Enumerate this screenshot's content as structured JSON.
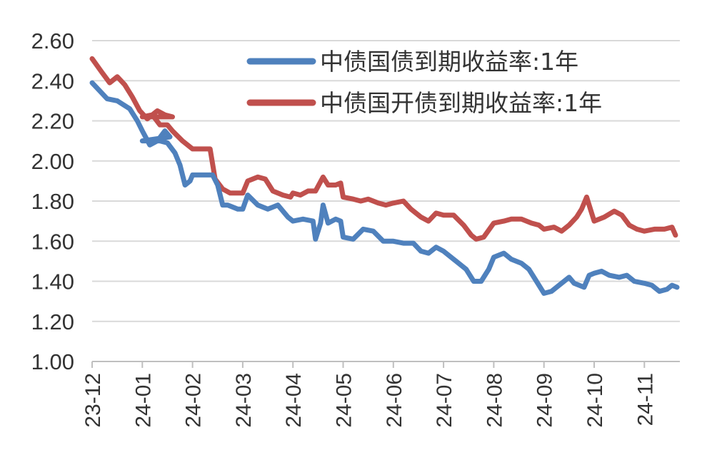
{
  "chart_data": {
    "type": "line",
    "title": "",
    "xlabel": "",
    "ylabel": "",
    "ylim": [
      1.0,
      2.6
    ],
    "y_ticks": [
      "1.00",
      "1.20",
      "1.40",
      "1.60",
      "1.80",
      "2.00",
      "2.20",
      "2.40",
      "2.60"
    ],
    "x_ticks": [
      "23-12",
      "24-01",
      "24-02",
      "24-03",
      "24-04",
      "24-05",
      "24-06",
      "24-07",
      "24-08",
      "24-09",
      "24-10",
      "24-11"
    ],
    "grid": true,
    "legend_position": "top-right",
    "series": [
      {
        "name": "中债国债到期收益率:1年",
        "color": "#4f81bd",
        "points": [
          [
            "23-12",
            2.39
          ],
          [
            0.3,
            2.31
          ],
          [
            0.5,
            2.3
          ],
          [
            0.75,
            2.26
          ],
          [
            0.9,
            2.2
          ],
          [
            1.0,
            2.15
          ],
          [
            1.15,
            2.08
          ],
          [
            1.3,
            2.1
          ],
          [
            1.45,
            2.15
          ],
          [
            1.55,
            2.12
          ],
          [
            "24-01",
            2.1
          ],
          [
            0.2,
            2.1
          ],
          [
            0.35,
            2.1
          ],
          [
            0.5,
            2.09
          ],
          [
            0.65,
            2.04
          ],
          [
            0.75,
            1.98
          ],
          [
            0.85,
            1.88
          ],
          [
            0.95,
            1.9
          ],
          [
            "24-02",
            1.93
          ],
          [
            0.2,
            1.93
          ],
          [
            0.4,
            1.93
          ],
          [
            0.5,
            1.88
          ],
          [
            0.6,
            1.78
          ],
          [
            0.7,
            1.78
          ],
          [
            0.8,
            1.77
          ],
          [
            0.9,
            1.76
          ],
          [
            "24-03",
            1.76
          ],
          [
            0.1,
            1.83
          ],
          [
            0.3,
            1.78
          ],
          [
            0.5,
            1.76
          ],
          [
            0.7,
            1.78
          ],
          [
            0.9,
            1.72
          ],
          [
            "24-04",
            1.7
          ],
          [
            0.2,
            1.71
          ],
          [
            0.4,
            1.7
          ],
          [
            0.45,
            1.61
          ],
          [
            0.55,
            1.69
          ],
          [
            0.6,
            1.78
          ],
          [
            0.7,
            1.69
          ],
          [
            0.85,
            1.71
          ],
          [
            0.95,
            1.7
          ],
          [
            "24-05",
            1.62
          ],
          [
            0.2,
            1.61
          ],
          [
            0.4,
            1.66
          ],
          [
            0.6,
            1.65
          ],
          [
            0.8,
            1.6
          ],
          [
            "24-06",
            1.6
          ],
          [
            0.2,
            1.59
          ],
          [
            0.4,
            1.59
          ],
          [
            0.55,
            1.55
          ],
          [
            0.7,
            1.54
          ],
          [
            0.85,
            1.57
          ],
          [
            "24-07",
            1.55
          ],
          [
            0.25,
            1.5
          ],
          [
            0.45,
            1.46
          ],
          [
            0.6,
            1.4
          ],
          [
            0.75,
            1.4
          ],
          [
            0.9,
            1.46
          ],
          [
            "24-08",
            1.52
          ],
          [
            0.2,
            1.54
          ],
          [
            0.35,
            1.51
          ],
          [
            0.55,
            1.49
          ],
          [
            0.7,
            1.46
          ],
          [
            0.85,
            1.4
          ],
          [
            "24-09",
            1.34
          ],
          [
            0.15,
            1.35
          ],
          [
            0.3,
            1.38
          ],
          [
            0.5,
            1.42
          ],
          [
            0.6,
            1.39
          ],
          [
            0.8,
            1.37
          ],
          [
            0.9,
            1.43
          ],
          [
            "24-10",
            1.44
          ],
          [
            0.15,
            1.45
          ],
          [
            0.3,
            1.43
          ],
          [
            0.5,
            1.42
          ],
          [
            0.65,
            1.43
          ],
          [
            0.8,
            1.4
          ],
          [
            "24-11",
            1.39
          ],
          [
            0.15,
            1.38
          ],
          [
            0.3,
            1.35
          ],
          [
            0.45,
            1.36
          ],
          [
            0.55,
            1.38
          ],
          [
            0.65,
            1.37
          ]
        ]
      },
      {
        "name": "中债国开债到期收益率:1年",
        "color": "#c0504d",
        "points": [
          [
            "23-12",
            2.51
          ],
          [
            0.2,
            2.44
          ],
          [
            0.35,
            2.39
          ],
          [
            0.5,
            2.42
          ],
          [
            0.65,
            2.38
          ],
          [
            0.8,
            2.32
          ],
          [
            0.95,
            2.25
          ],
          [
            1.1,
            2.21
          ],
          [
            1.3,
            2.25
          ],
          [
            1.45,
            2.23
          ],
          [
            1.6,
            2.22
          ],
          [
            "24-01",
            2.22
          ],
          [
            0.2,
            2.23
          ],
          [
            0.35,
            2.18
          ],
          [
            0.5,
            2.18
          ],
          [
            0.6,
            2.15
          ],
          [
            0.8,
            2.1
          ],
          [
            "24-02",
            2.06
          ],
          [
            0.2,
            2.06
          ],
          [
            0.35,
            2.06
          ],
          [
            0.45,
            1.91
          ],
          [
            0.6,
            1.86
          ],
          [
            0.75,
            1.84
          ],
          [
            0.9,
            1.84
          ],
          [
            "24-03",
            1.84
          ],
          [
            0.1,
            1.9
          ],
          [
            0.3,
            1.92
          ],
          [
            0.45,
            1.91
          ],
          [
            0.6,
            1.85
          ],
          [
            0.8,
            1.83
          ],
          [
            0.95,
            1.82
          ],
          [
            "24-04",
            1.84
          ],
          [
            0.15,
            1.83
          ],
          [
            0.3,
            1.85
          ],
          [
            0.45,
            1.85
          ],
          [
            0.6,
            1.92
          ],
          [
            0.7,
            1.88
          ],
          [
            0.85,
            1.88
          ],
          [
            0.95,
            1.89
          ],
          [
            "24-05",
            1.82
          ],
          [
            0.2,
            1.81
          ],
          [
            0.35,
            1.8
          ],
          [
            0.5,
            1.81
          ],
          [
            0.7,
            1.79
          ],
          [
            0.85,
            1.78
          ],
          [
            "24-06",
            1.79
          ],
          [
            0.2,
            1.8
          ],
          [
            0.35,
            1.76
          ],
          [
            0.55,
            1.72
          ],
          [
            0.7,
            1.7
          ],
          [
            0.85,
            1.74
          ],
          [
            "24-07",
            1.73
          ],
          [
            0.2,
            1.73
          ],
          [
            0.4,
            1.68
          ],
          [
            0.55,
            1.63
          ],
          [
            0.65,
            1.61
          ],
          [
            0.8,
            1.62
          ],
          [
            "24-08",
            1.69
          ],
          [
            0.2,
            1.7
          ],
          [
            0.35,
            1.71
          ],
          [
            0.55,
            1.71
          ],
          [
            0.75,
            1.69
          ],
          [
            0.9,
            1.68
          ],
          [
            "24-09",
            1.66
          ],
          [
            0.2,
            1.67
          ],
          [
            0.35,
            1.65
          ],
          [
            0.5,
            1.68
          ],
          [
            0.65,
            1.72
          ],
          [
            0.75,
            1.76
          ],
          [
            0.85,
            1.82
          ],
          [
            0.95,
            1.74
          ],
          [
            "24-10",
            1.7
          ],
          [
            0.2,
            1.72
          ],
          [
            0.4,
            1.75
          ],
          [
            0.55,
            1.73
          ],
          [
            0.7,
            1.68
          ],
          [
            0.85,
            1.66
          ],
          [
            "24-11",
            1.65
          ],
          [
            0.2,
            1.66
          ],
          [
            0.4,
            1.66
          ],
          [
            0.55,
            1.67
          ],
          [
            0.62,
            1.63
          ]
        ]
      }
    ]
  }
}
